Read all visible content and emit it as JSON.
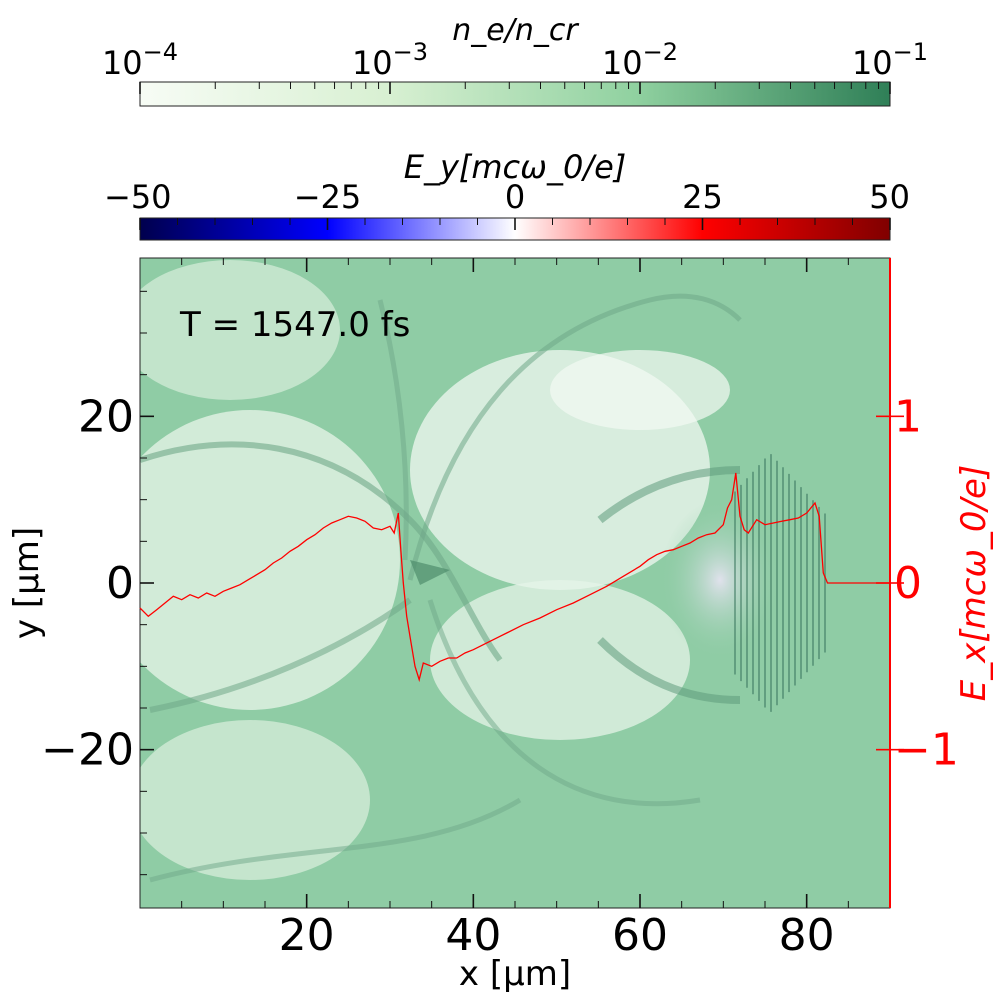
{
  "colorbar_ne": {
    "label": "n_e/n_cr",
    "ticks": [
      {
        "base": "10",
        "exp": "−4",
        "value": 0.0001
      },
      {
        "base": "10",
        "exp": "−3",
        "value": 0.001
      },
      {
        "base": "10",
        "exp": "−2",
        "value": 0.01
      },
      {
        "base": "10",
        "exp": "−1",
        "value": 0.1
      }
    ],
    "scale": "log",
    "range": [
      0.0001,
      0.1
    ],
    "colormap": "Greens",
    "colors": [
      "#f7fcf5",
      "#c7e9c0",
      "#74c476",
      "#2f7f57"
    ]
  },
  "colorbar_ey": {
    "label": "E_y[mcω_0/e]",
    "ticks": [
      "−50",
      "−25",
      "0",
      "25",
      "50"
    ],
    "tick_values": [
      -50,
      -25,
      0,
      25,
      50
    ],
    "range": [
      -50,
      50
    ],
    "colormap": "seismic",
    "colors": [
      "#00004d",
      "#0000ff",
      "#ffffff",
      "#ff0000",
      "#800000"
    ]
  },
  "chart_data": {
    "type": "line",
    "annotation": "T = 1547.0 fs",
    "xlabel": "x [μm]",
    "ylabel": "y [μm]",
    "y2label": "E_x[mcω_0/e]",
    "xlim": [
      0,
      90
    ],
    "ylim": [
      -39,
      39
    ],
    "y2lim": [
      -1.95,
      1.95
    ],
    "xticks": [
      20,
      40,
      60,
      80
    ],
    "xtick_labels": [
      "20",
      "40",
      "60",
      "80"
    ],
    "yticks": [
      -20,
      0,
      20
    ],
    "ytick_labels": [
      "−20",
      "0",
      "20"
    ],
    "y2ticks": [
      -1,
      0,
      1
    ],
    "y2tick_labels": [
      "−1",
      "0",
      "1"
    ],
    "background_colormap_colors": [
      "#8fcca5",
      "#e8f5ea"
    ],
    "series": [
      {
        "axis": "y2",
        "color": "#ff0000",
        "x": [
          0,
          1,
          2,
          3,
          4,
          5,
          6,
          7,
          8,
          9,
          10,
          11,
          12,
          13,
          14,
          15,
          16,
          17,
          18,
          19,
          20,
          21,
          22,
          23,
          24,
          25,
          26,
          27,
          28,
          29,
          30,
          30.5,
          31,
          31.3,
          31.6,
          32,
          32.5,
          33,
          33.5,
          34,
          35,
          36,
          37,
          38,
          39,
          40,
          42,
          44,
          46,
          48,
          50,
          52,
          54,
          56,
          58,
          60,
          61,
          62,
          63,
          64,
          65,
          66,
          67,
          68,
          69,
          70,
          70.5,
          71,
          71.5,
          72,
          72.5,
          73,
          73.5,
          74,
          75,
          76,
          77,
          78,
          79,
          80,
          81,
          81.5,
          82,
          82.5,
          83,
          84,
          86,
          88,
          90
        ],
        "y": [
          -0.15,
          -0.2,
          -0.16,
          -0.12,
          -0.08,
          -0.1,
          -0.07,
          -0.09,
          -0.06,
          -0.08,
          -0.05,
          -0.03,
          -0.01,
          0.02,
          0.05,
          0.08,
          0.12,
          0.15,
          0.19,
          0.22,
          0.26,
          0.29,
          0.33,
          0.36,
          0.38,
          0.4,
          0.39,
          0.37,
          0.33,
          0.32,
          0.34,
          0.3,
          0.42,
          0.2,
          0.0,
          -0.2,
          -0.35,
          -0.5,
          -0.58,
          -0.48,
          -0.5,
          -0.47,
          -0.45,
          -0.45,
          -0.42,
          -0.4,
          -0.35,
          -0.3,
          -0.25,
          -0.21,
          -0.16,
          -0.12,
          -0.07,
          -0.02,
          0.04,
          0.1,
          0.14,
          0.17,
          0.19,
          0.2,
          0.22,
          0.24,
          0.27,
          0.29,
          0.3,
          0.35,
          0.45,
          0.5,
          0.66,
          0.4,
          0.32,
          0.3,
          0.34,
          0.38,
          0.35,
          0.36,
          0.37,
          0.38,
          0.39,
          0.42,
          0.48,
          0.4,
          0.06,
          0.0,
          0.0,
          0.0,
          0.0,
          0.0,
          0.0
        ]
      }
    ]
  }
}
